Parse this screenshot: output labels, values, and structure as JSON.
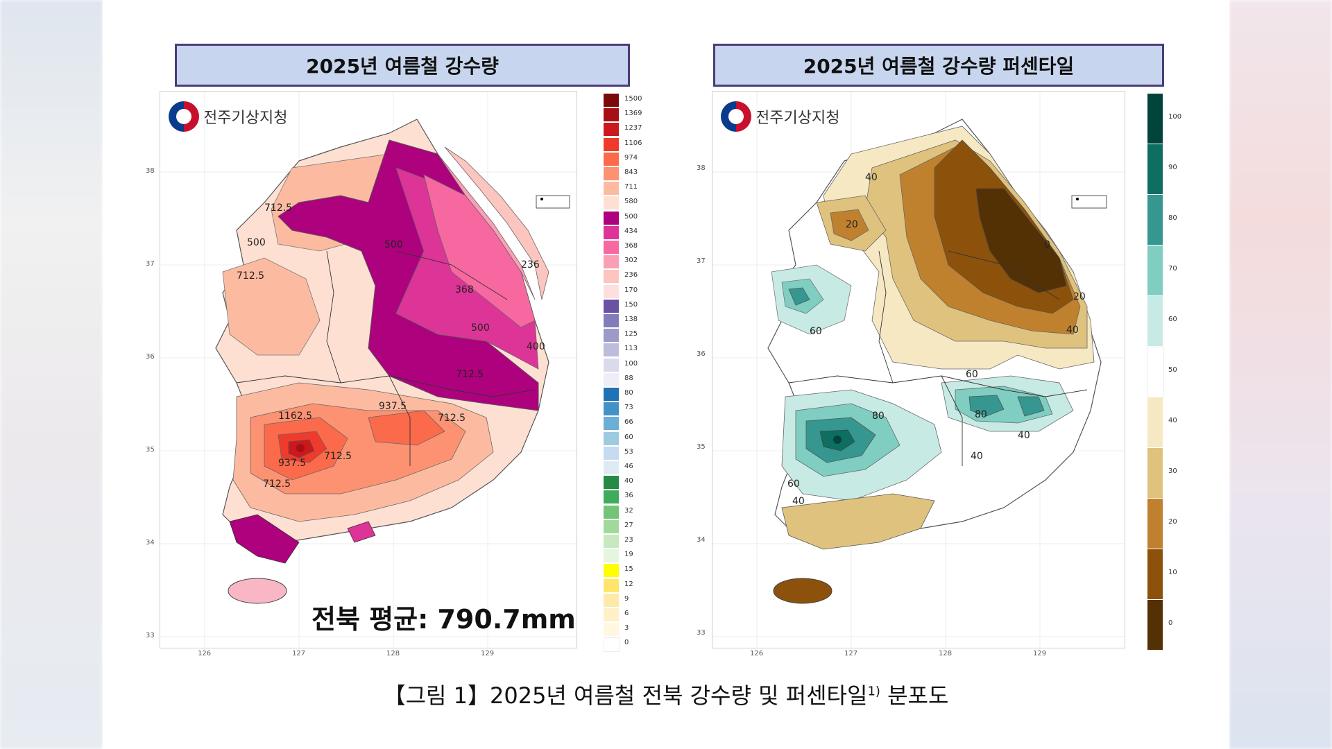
{
  "caption": {
    "prefix": "【그림 1】",
    "main": "2025년 여름철 전북 강수량 및 퍼센타일",
    "sup": "1)",
    "suffix": "분포도"
  },
  "left": {
    "title": "2025년 여름철 강수량",
    "logo_text": "전주기상지청",
    "average": "전북 평균: 790.7mm",
    "lat_ticks": [
      "38",
      "37",
      "36",
      "35",
      "34",
      "33"
    ],
    "lon_ticks": [
      "126",
      "127",
      "128",
      "129"
    ],
    "legend": [
      {
        "label": "1500",
        "color": "#7a0a0a"
      },
      {
        "label": "1369",
        "color": "#a50f15"
      },
      {
        "label": "1237",
        "color": "#cb181d"
      },
      {
        "label": "1106",
        "color": "#ef3b2c"
      },
      {
        "label": "974",
        "color": "#fb6a4a"
      },
      {
        "label": "843",
        "color": "#fc9272"
      },
      {
        "label": "711",
        "color": "#fcbba1"
      },
      {
        "label": "580",
        "color": "#fee0d2"
      },
      {
        "label": "500",
        "color": "#ae017e"
      },
      {
        "label": "434",
        "color": "#dd3497"
      },
      {
        "label": "368",
        "color": "#f768a1"
      },
      {
        "label": "302",
        "color": "#fa9fb5"
      },
      {
        "label": "236",
        "color": "#fcc5c0"
      },
      {
        "label": "170",
        "color": "#fde0dd"
      },
      {
        "label": "150",
        "color": "#6a51a3"
      },
      {
        "label": "138",
        "color": "#807dba"
      },
      {
        "label": "125",
        "color": "#9e9ac8"
      },
      {
        "label": "113",
        "color": "#bcbddc"
      },
      {
        "label": "100",
        "color": "#dadaeb"
      },
      {
        "label": "88",
        "color": "#efedf5"
      },
      {
        "label": "80",
        "color": "#2171b5"
      },
      {
        "label": "73",
        "color": "#4292c6"
      },
      {
        "label": "66",
        "color": "#6baed6"
      },
      {
        "label": "60",
        "color": "#9ecae1"
      },
      {
        "label": "53",
        "color": "#c6dbef"
      },
      {
        "label": "46",
        "color": "#deebf7"
      },
      {
        "label": "40",
        "color": "#238b45"
      },
      {
        "label": "36",
        "color": "#41ab5d"
      },
      {
        "label": "32",
        "color": "#74c476"
      },
      {
        "label": "27",
        "color": "#a1d99b"
      },
      {
        "label": "23",
        "color": "#c7e9c0"
      },
      {
        "label": "19",
        "color": "#e5f5e0"
      },
      {
        "label": "15",
        "color": "#ffff00"
      },
      {
        "label": "12",
        "color": "#ffe66b"
      },
      {
        "label": "9",
        "color": "#ffe9a8"
      },
      {
        "label": "6",
        "color": "#fff0c8"
      },
      {
        "label": "3",
        "color": "#fff7e0"
      },
      {
        "label": "0",
        "color": "#ffffff"
      }
    ],
    "contour_labels": [
      "712.5",
      "500",
      "500",
      "712.5",
      "368",
      "236",
      "500",
      "400",
      "712.5",
      "1162.5",
      "937.5",
      "712.5",
      "937.5",
      "712.5",
      "712.5"
    ]
  },
  "right": {
    "title": "2025년 여름철 강수량 퍼센타일",
    "logo_text": "전주기상지청",
    "lat_ticks": [
      "38",
      "37",
      "36",
      "35",
      "34",
      "33"
    ],
    "lon_ticks": [
      "126",
      "127",
      "128",
      "129"
    ],
    "legend": [
      {
        "label": "100",
        "color": "#01443c"
      },
      {
        "label": "90",
        "color": "#0e6e62"
      },
      {
        "label": "80",
        "color": "#35978f"
      },
      {
        "label": "70",
        "color": "#80cdc1"
      },
      {
        "label": "60",
        "color": "#c7eae5"
      },
      {
        "label": "50",
        "color": "#ffffff"
      },
      {
        "label": "40",
        "color": "#f6e8c3"
      },
      {
        "label": "30",
        "color": "#dfc27d"
      },
      {
        "label": "20",
        "color": "#bf812d"
      },
      {
        "label": "10",
        "color": "#8c510a"
      },
      {
        "label": "0",
        "color": "#543005"
      }
    ],
    "contour_labels": [
      "40",
      "20",
      "0",
      "20",
      "40",
      "60",
      "80",
      "80",
      "60",
      "40",
      "40",
      "60",
      "40"
    ]
  }
}
